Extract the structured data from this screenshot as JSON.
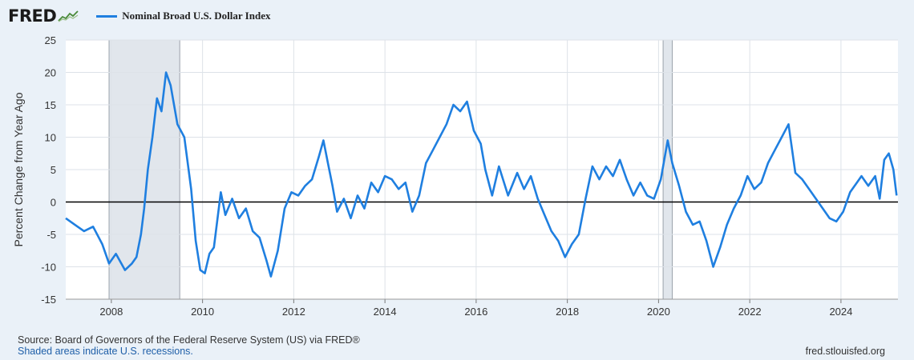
{
  "header": {
    "logo_text": "FRED",
    "logo_icon": "line-chart-icon"
  },
  "colors": {
    "series": "#1f7fe0",
    "recession": "#e1e6ec",
    "grid": "#dde2e8",
    "zero_line": "#000000",
    "background": "#eaf1f8"
  },
  "footer": {
    "source": "Source: Board of Governors of the Federal Reserve System (US) via FRED®",
    "recession_note": "Shaded areas indicate U.S. recessions.",
    "site": "fred.stlouisfed.org"
  },
  "chart_data": {
    "type": "line",
    "title": "",
    "xlabel": "",
    "ylabel": "Percent Change from Year Ago",
    "xlim": [
      2007.0,
      2025.25
    ],
    "ylim": [
      -15,
      25
    ],
    "y_ticks": [
      25,
      20,
      15,
      10,
      5,
      0,
      -5,
      -10,
      -15
    ],
    "x_ticks": [
      2008,
      2010,
      2012,
      2014,
      2016,
      2018,
      2020,
      2022,
      2024
    ],
    "grid": true,
    "reference_line_y": 0,
    "recessions": [
      [
        2007.95,
        2009.5
      ],
      [
        2020.1,
        2020.3
      ]
    ],
    "legend": {
      "position": "top-left",
      "entries": [
        "Nominal Broad U.S. Dollar Index"
      ]
    },
    "series": [
      {
        "name": "Nominal Broad U.S. Dollar Index",
        "x": [
          2007.0,
          2007.2,
          2007.4,
          2007.6,
          2007.8,
          2007.95,
          2008.1,
          2008.3,
          2008.45,
          2008.55,
          2008.65,
          2008.72,
          2008.8,
          2008.9,
          2009.0,
          2009.1,
          2009.2,
          2009.3,
          2009.45,
          2009.6,
          2009.75,
          2009.85,
          2009.95,
          2010.05,
          2010.15,
          2010.25,
          2010.4,
          2010.5,
          2010.65,
          2010.8,
          2010.95,
          2011.1,
          2011.25,
          2011.4,
          2011.5,
          2011.65,
          2011.8,
          2011.95,
          2012.1,
          2012.25,
          2012.4,
          2012.55,
          2012.65,
          2012.75,
          2012.85,
          2012.95,
          2013.1,
          2013.25,
          2013.4,
          2013.55,
          2013.7,
          2013.85,
          2014.0,
          2014.15,
          2014.3,
          2014.45,
          2014.6,
          2014.75,
          2014.9,
          2015.05,
          2015.2,
          2015.35,
          2015.5,
          2015.65,
          2015.8,
          2015.95,
          2016.1,
          2016.2,
          2016.35,
          2016.5,
          2016.7,
          2016.9,
          2017.05,
          2017.2,
          2017.35,
          2017.5,
          2017.65,
          2017.8,
          2017.95,
          2018.1,
          2018.25,
          2018.4,
          2018.55,
          2018.7,
          2018.85,
          2019.0,
          2019.15,
          2019.3,
          2019.45,
          2019.6,
          2019.75,
          2019.9,
          2020.05,
          2020.2,
          2020.3,
          2020.45,
          2020.6,
          2020.75,
          2020.9,
          2021.05,
          2021.2,
          2021.35,
          2021.5,
          2021.65,
          2021.8,
          2021.95,
          2022.1,
          2022.25,
          2022.4,
          2022.55,
          2022.7,
          2022.85,
          2023.0,
          2023.15,
          2023.3,
          2023.45,
          2023.6,
          2023.75,
          2023.9,
          2024.05,
          2024.2,
          2024.35,
          2024.45,
          2024.6,
          2024.75,
          2024.85,
          2024.95,
          2025.05,
          2025.15,
          2025.22
        ],
        "values": [
          -2.5,
          -3.5,
          -4.5,
          -3.8,
          -6.5,
          -9.5,
          -8.0,
          -10.5,
          -9.5,
          -8.5,
          -5.0,
          -1.0,
          5.0,
          10.0,
          16.0,
          14.0,
          20.0,
          18.0,
          12.0,
          10.0,
          2.0,
          -6.0,
          -10.5,
          -11.0,
          -8.0,
          -7.0,
          1.5,
          -2.0,
          0.5,
          -2.5,
          -1.0,
          -4.5,
          -5.5,
          -9.0,
          -11.5,
          -7.5,
          -1.0,
          1.5,
          1.0,
          2.5,
          3.5,
          7.0,
          9.5,
          6.0,
          2.5,
          -1.5,
          0.5,
          -2.5,
          1.0,
          -1.0,
          3.0,
          1.5,
          4.0,
          3.5,
          2.0,
          3.0,
          -1.5,
          1.0,
          6.0,
          8.0,
          10.0,
          12.0,
          15.0,
          14.0,
          15.5,
          11.0,
          9.0,
          5.0,
          1.0,
          5.5,
          1.0,
          4.5,
          2.0,
          4.0,
          0.5,
          -2.0,
          -4.5,
          -6.0,
          -8.5,
          -6.5,
          -5.0,
          0.5,
          5.5,
          3.5,
          5.5,
          4.0,
          6.5,
          3.5,
          1.0,
          3.0,
          1.0,
          0.5,
          3.5,
          9.5,
          6.0,
          2.5,
          -1.5,
          -3.5,
          -3.0,
          -6.0,
          -10.0,
          -7.0,
          -3.5,
          -1.0,
          1.0,
          4.0,
          2.0,
          3.0,
          6.0,
          8.0,
          10.0,
          12.0,
          4.5,
          3.5,
          2.0,
          0.5,
          -1.0,
          -2.5,
          -3.0,
          -1.5,
          1.5,
          3.0,
          4.0,
          2.5,
          4.0,
          0.5,
          6.5,
          7.5,
          5.0,
          1.0
        ]
      }
    ]
  }
}
